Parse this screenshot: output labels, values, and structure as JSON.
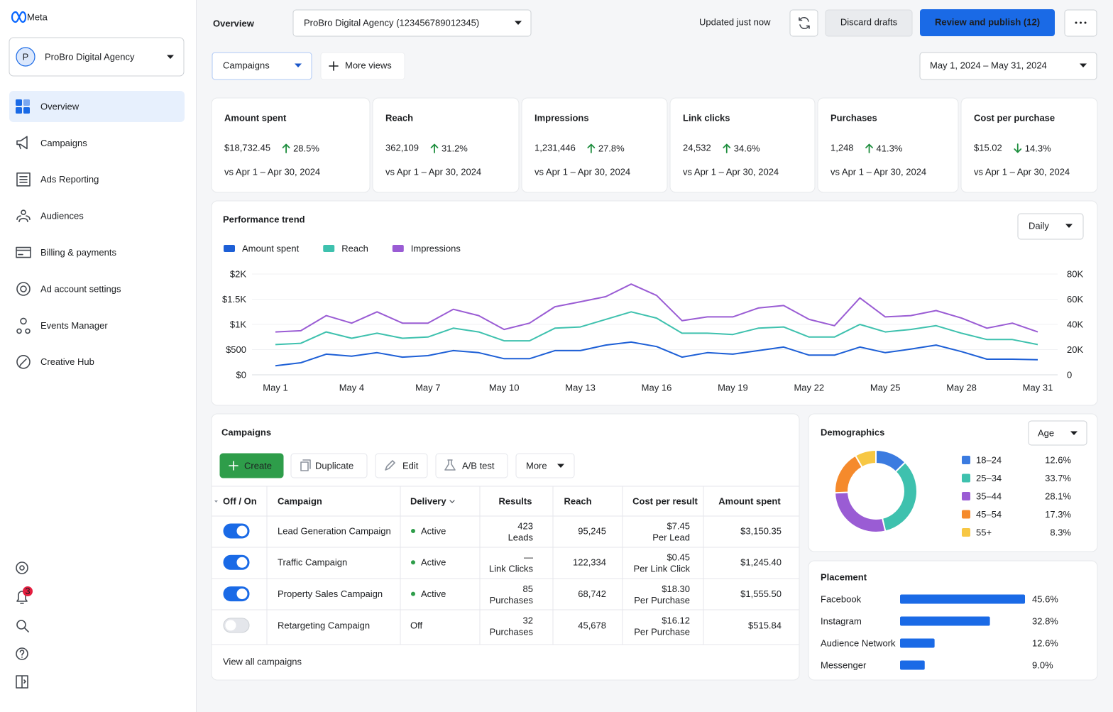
{
  "sidebar": {
    "logo": "Meta",
    "account": {
      "initial": "P",
      "name": "ProBro Digital Agency"
    },
    "nav": [
      "Overview",
      "Campaigns",
      "Ads Reporting",
      "Audiences",
      "Billing & payments",
      "Ad account settings",
      "Events Manager",
      "Creative Hub"
    ],
    "active": 0,
    "notifications": 3
  },
  "header": {
    "title": "Overview",
    "account_selector": "ProBro Digital Agency (123456789012345)",
    "status": "Updated just now",
    "discard": "Discard drafts",
    "publish": "Review and publish (12)"
  },
  "toolbar": {
    "view": "Campaigns",
    "more_views": "More views",
    "date_range": "May 1, 2024 – May 31, 2024"
  },
  "kpis": [
    {
      "label": "Amount spent",
      "value": "$18,732.45",
      "change": "28.5%",
      "direction": "up",
      "comparison": "vs Apr 1 – Apr 30, 2024"
    },
    {
      "label": "Reach",
      "value": "362,109",
      "change": "31.2%",
      "direction": "up",
      "comparison": "vs Apr 1 – Apr 30, 2024"
    },
    {
      "label": "Impressions",
      "value": "1,231,446",
      "change": "27.8%",
      "direction": "up",
      "comparison": "vs Apr 1 – Apr 30, 2024"
    },
    {
      "label": "Link clicks",
      "value": "24,532",
      "change": "34.6%",
      "direction": "up",
      "comparison": "vs Apr 1 – Apr 30, 2024"
    },
    {
      "label": "Purchases",
      "value": "1,248",
      "change": "41.3%",
      "direction": "up",
      "comparison": "vs Apr 1 – Apr 30, 2024"
    },
    {
      "label": "Cost per purchase",
      "value": "$15.02",
      "change": "14.3%",
      "direction": "down",
      "comparison": "vs Apr 1 – Apr 30, 2024"
    }
  ],
  "chart_data": [
    {
      "type": "line",
      "title": "Performance trend",
      "interval": "Daily",
      "categories": [
        "May 1",
        null,
        null,
        "May 4",
        null,
        null,
        "May 7",
        null,
        null,
        "May 10",
        null,
        null,
        "May 13",
        null,
        null,
        "May 16",
        null,
        null,
        "May 19",
        null,
        null,
        "May 22",
        null,
        null,
        "May 25",
        null,
        null,
        "May 28",
        null,
        null,
        "May 31"
      ],
      "series": [
        {
          "name": "Amount spent",
          "color": "#1d5fd6",
          "values": [
            180,
            240,
            410,
            370,
            440,
            350,
            380,
            480,
            440,
            320,
            320,
            480,
            480,
            590,
            650,
            560,
            350,
            440,
            410,
            480,
            550,
            390,
            390,
            550,
            440,
            510,
            590,
            460,
            310,
            310,
            300
          ]
        },
        {
          "name": "Reach",
          "color": "#3ec1ae",
          "axis": "y2",
          "values": [
            24000,
            25000,
            34000,
            29000,
            33000,
            29000,
            30000,
            37000,
            34000,
            27000,
            27000,
            37000,
            38000,
            44000,
            50000,
            45000,
            33000,
            33000,
            32000,
            37000,
            38000,
            30000,
            30000,
            40000,
            34000,
            36000,
            39000,
            33000,
            28000,
            28000,
            24000
          ]
        },
        {
          "name": "Impressions",
          "color": "#9a5cd4",
          "axis": "y2",
          "values": [
            34000,
            35000,
            47000,
            41000,
            50000,
            41000,
            41000,
            52000,
            47000,
            36000,
            41000,
            54000,
            58000,
            62000,
            72000,
            63000,
            43000,
            46000,
            46000,
            53000,
            55000,
            44000,
            39000,
            61000,
            46000,
            47000,
            51000,
            45000,
            37000,
            41000,
            34000
          ]
        }
      ],
      "ylim": [
        0,
        2000
      ],
      "yticks": [
        {
          "value": 0,
          "label": "$0"
        },
        {
          "value": 500,
          "label": "$500"
        },
        {
          "value": 1000,
          "label": "$1K"
        },
        {
          "value": 1500,
          "label": "$1.5K"
        },
        {
          "value": 2000,
          "label": "$2K"
        }
      ],
      "y2lim": [
        0,
        80000
      ],
      "y2ticks": [
        0,
        {
          "value": 20000,
          "label": "20K"
        },
        {
          "value": 40000,
          "label": "40K"
        },
        {
          "value": 60000,
          "label": "60K"
        },
        {
          "value": 80000,
          "label": "80K"
        }
      ],
      "grid": true
    },
    {
      "type": "donut",
      "title": "Demographics",
      "selector": "Age",
      "categories": [
        "18–24",
        "25–34",
        "35–44",
        "45–54",
        "55+"
      ],
      "values": [
        12.6,
        33.7,
        28.1,
        17.3,
        8.3
      ],
      "value_labels": [
        "12.6%",
        "33.7%",
        "28.1%",
        "17.3%",
        "8.3%"
      ],
      "colors": [
        "#3b7be0",
        "#3ec1ae",
        "#9a5cd4",
        "#f58a2c",
        "#f7c744"
      ]
    },
    {
      "type": "bar",
      "orientation": "horizontal",
      "title": "Placement",
      "categories": [
        "Facebook",
        "Instagram",
        "Audience Network",
        "Messenger"
      ],
      "values": [
        45.6,
        32.8,
        12.6,
        9.0
      ],
      "value_labels": [
        "45.6%",
        "32.8%",
        "12.6%",
        "9.0%"
      ],
      "color": "#1a6ae6"
    }
  ],
  "campaigns": {
    "title": "Campaigns",
    "actions": [
      "Create",
      "Duplicate",
      "Edit",
      "A/B test",
      "More"
    ],
    "columns": [
      "Off / On",
      "Campaign",
      "Delivery",
      "Results",
      "Reach",
      "Cost per result",
      "Amount spent"
    ],
    "rows": [
      {
        "on": true,
        "name": "Lead Generation Campaign",
        "delivery": "Active",
        "results": "423",
        "results_unit": "Leads",
        "reach": "95,245",
        "cost": "$7.45",
        "cost_unit": "Per Lead",
        "amount": "$3,150.35"
      },
      {
        "on": true,
        "name": "Traffic Campaign",
        "delivery": "Active",
        "results": "—",
        "results_unit": "Link Clicks",
        "reach": "122,334",
        "cost": "$0.45",
        "cost_unit": "Per Link Click",
        "amount": "$1,245.40"
      },
      {
        "on": true,
        "name": "Property Sales Campaign",
        "delivery": "Active",
        "results": "85",
        "results_unit": "Purchases",
        "reach": "68,742",
        "cost": "$18.30",
        "cost_unit": "Per Purchase",
        "amount": "$1,555.50"
      },
      {
        "on": false,
        "name": "Retargeting Campaign",
        "delivery": "Off",
        "results": "32",
        "results_unit": "Purchases",
        "reach": "45,678",
        "cost": "$16.12",
        "cost_unit": "Per Purchase",
        "amount": "$515.84"
      }
    ],
    "footer": "View all campaigns"
  }
}
